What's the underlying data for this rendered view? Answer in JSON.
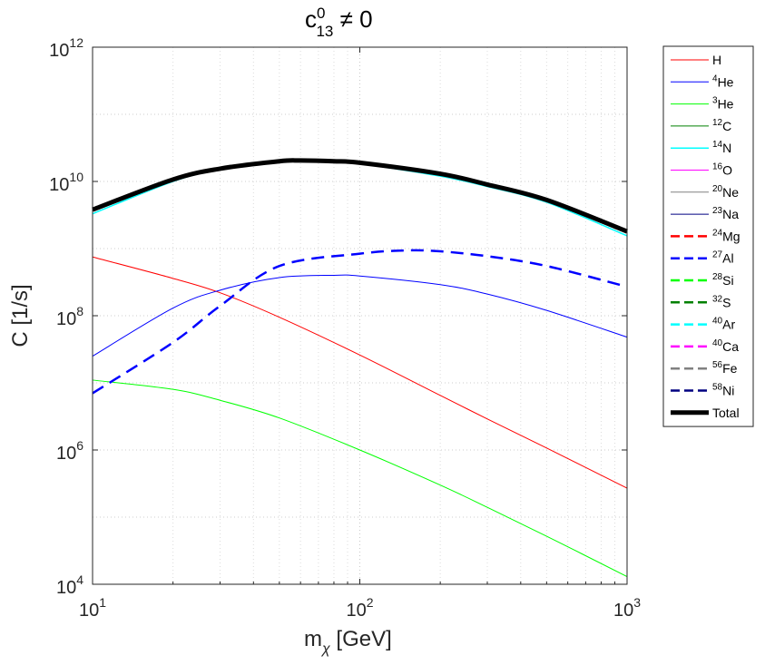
{
  "chart_data": {
    "type": "line",
    "title": {
      "base": "c",
      "sup": "0",
      "sub": "13",
      "rest": " ≠ 0"
    },
    "xlabel": {
      "base": "m",
      "sub": "χ",
      "rest": " [GeV]"
    },
    "ylabel": "C [1/s]",
    "xscale": "log",
    "yscale": "log",
    "xlim": [
      10,
      1000
    ],
    "ylim": [
      10000,
      1000000000000
    ],
    "grid": true,
    "legend_position": "outside-right",
    "x_ticks": [
      {
        "value": 10,
        "base": "10",
        "exp": "1"
      },
      {
        "value": 100,
        "base": "10",
        "exp": "2"
      },
      {
        "value": 1000,
        "base": "10",
        "exp": "3"
      }
    ],
    "y_ticks": [
      {
        "value": 10000,
        "base": "10",
        "exp": "4"
      },
      {
        "value": 1000000,
        "base": "10",
        "exp": "6"
      },
      {
        "value": 100000000,
        "base": "10",
        "exp": "8"
      },
      {
        "value": 10000000000,
        "base": "10",
        "exp": "10"
      },
      {
        "value": 1000000000000,
        "base": "10",
        "exp": "12"
      }
    ],
    "series": [
      {
        "name": "H",
        "iso": "",
        "el": "H",
        "color": "#ff0000",
        "dash": false,
        "width": 1,
        "x": [
          10,
          20,
          30,
          50,
          100,
          200,
          300,
          500,
          1000
        ],
        "y": [
          750000000,
          360000000,
          220000000,
          95000000,
          26000000,
          6500000,
          2900000,
          1070000,
          270000
        ]
      },
      {
        "name": "4He",
        "iso": "4",
        "el": "He",
        "color": "#0000ff",
        "dash": false,
        "width": 1,
        "x": [
          10,
          20,
          30,
          50,
          80,
          100,
          200,
          300,
          500,
          1000
        ],
        "y": [
          25000000,
          130000000,
          240000000,
          370000000,
          400000000,
          390000000,
          290000000,
          210000000,
          120000000,
          48000000
        ]
      },
      {
        "name": "3He",
        "iso": "3",
        "el": "He",
        "color": "#00ff00",
        "dash": false,
        "width": 1,
        "x": [
          10,
          20,
          30,
          50,
          100,
          200,
          300,
          500,
          1000
        ],
        "y": [
          11000000,
          8000000,
          5500000,
          3000000,
          1000000,
          300000,
          140000,
          52000,
          13000
        ]
      },
      {
        "name": "12C",
        "iso": "12",
        "el": "C",
        "color": "#008000",
        "dash": false,
        "width": 1,
        "x": [],
        "y": []
      },
      {
        "name": "14N",
        "iso": "14",
        "el": "N",
        "color": "#00ffff",
        "dash": false,
        "width": 1.5,
        "x": [
          10,
          20,
          30,
          50,
          60,
          80,
          100,
          200,
          300,
          500,
          1000
        ],
        "y": [
          3300000000,
          10000000000,
          15000000000,
          19500000000,
          20000000000,
          19500000000,
          18500000000,
          12000000000,
          8400000000,
          4900000000,
          1550000000
        ]
      },
      {
        "name": "16O",
        "iso": "16",
        "el": "O",
        "color": "#ff00ff",
        "dash": false,
        "width": 1,
        "x": [],
        "y": []
      },
      {
        "name": "20Ne",
        "iso": "20",
        "el": "Ne",
        "color": "#808080",
        "dash": false,
        "width": 1,
        "x": [],
        "y": []
      },
      {
        "name": "23Na",
        "iso": "23",
        "el": "Na",
        "color": "#000080",
        "dash": false,
        "width": 1,
        "x": [],
        "y": []
      },
      {
        "name": "24Mg",
        "iso": "24",
        "el": "Mg",
        "color": "#ff0000",
        "dash": true,
        "width": 2.5,
        "x": [],
        "y": []
      },
      {
        "name": "27Al",
        "iso": "27",
        "el": "Al",
        "color": "#0000ff",
        "dash": true,
        "width": 2.5,
        "x": [
          10,
          20,
          30,
          50,
          100,
          150,
          200,
          300,
          500,
          1000
        ],
        "y": [
          7000000,
          40000000,
          140000000,
          550000000,
          840000000,
          940000000,
          910000000,
          770000000,
          550000000,
          270000000
        ]
      },
      {
        "name": "28Si",
        "iso": "28",
        "el": "Si",
        "color": "#00ff00",
        "dash": true,
        "width": 2.5,
        "x": [],
        "y": []
      },
      {
        "name": "32S",
        "iso": "32",
        "el": "S",
        "color": "#008000",
        "dash": true,
        "width": 2.5,
        "x": [],
        "y": []
      },
      {
        "name": "40Ar",
        "iso": "40",
        "el": "Ar",
        "color": "#00ffff",
        "dash": true,
        "width": 2.5,
        "x": [],
        "y": []
      },
      {
        "name": "40Ca",
        "iso": "40",
        "el": "Ca",
        "color": "#ff00ff",
        "dash": true,
        "width": 2.5,
        "x": [],
        "y": []
      },
      {
        "name": "56Fe",
        "iso": "56",
        "el": "Fe",
        "color": "#808080",
        "dash": true,
        "width": 2.5,
        "x": [],
        "y": []
      },
      {
        "name": "58Ni",
        "iso": "58",
        "el": "Ni",
        "color": "#000080",
        "dash": true,
        "width": 2.5,
        "x": [],
        "y": []
      },
      {
        "name": "Total",
        "iso": "",
        "el": "Total",
        "color": "#000000",
        "dash": false,
        "width": 5,
        "x": [
          10,
          20,
          30,
          50,
          60,
          80,
          100,
          200,
          300,
          500,
          1000
        ],
        "y": [
          3800000000,
          10700000000,
          15500000000,
          20000000000,
          20500000000,
          20000000000,
          19000000000,
          13000000000,
          9000000000,
          5300000000,
          1800000000
        ]
      }
    ]
  }
}
